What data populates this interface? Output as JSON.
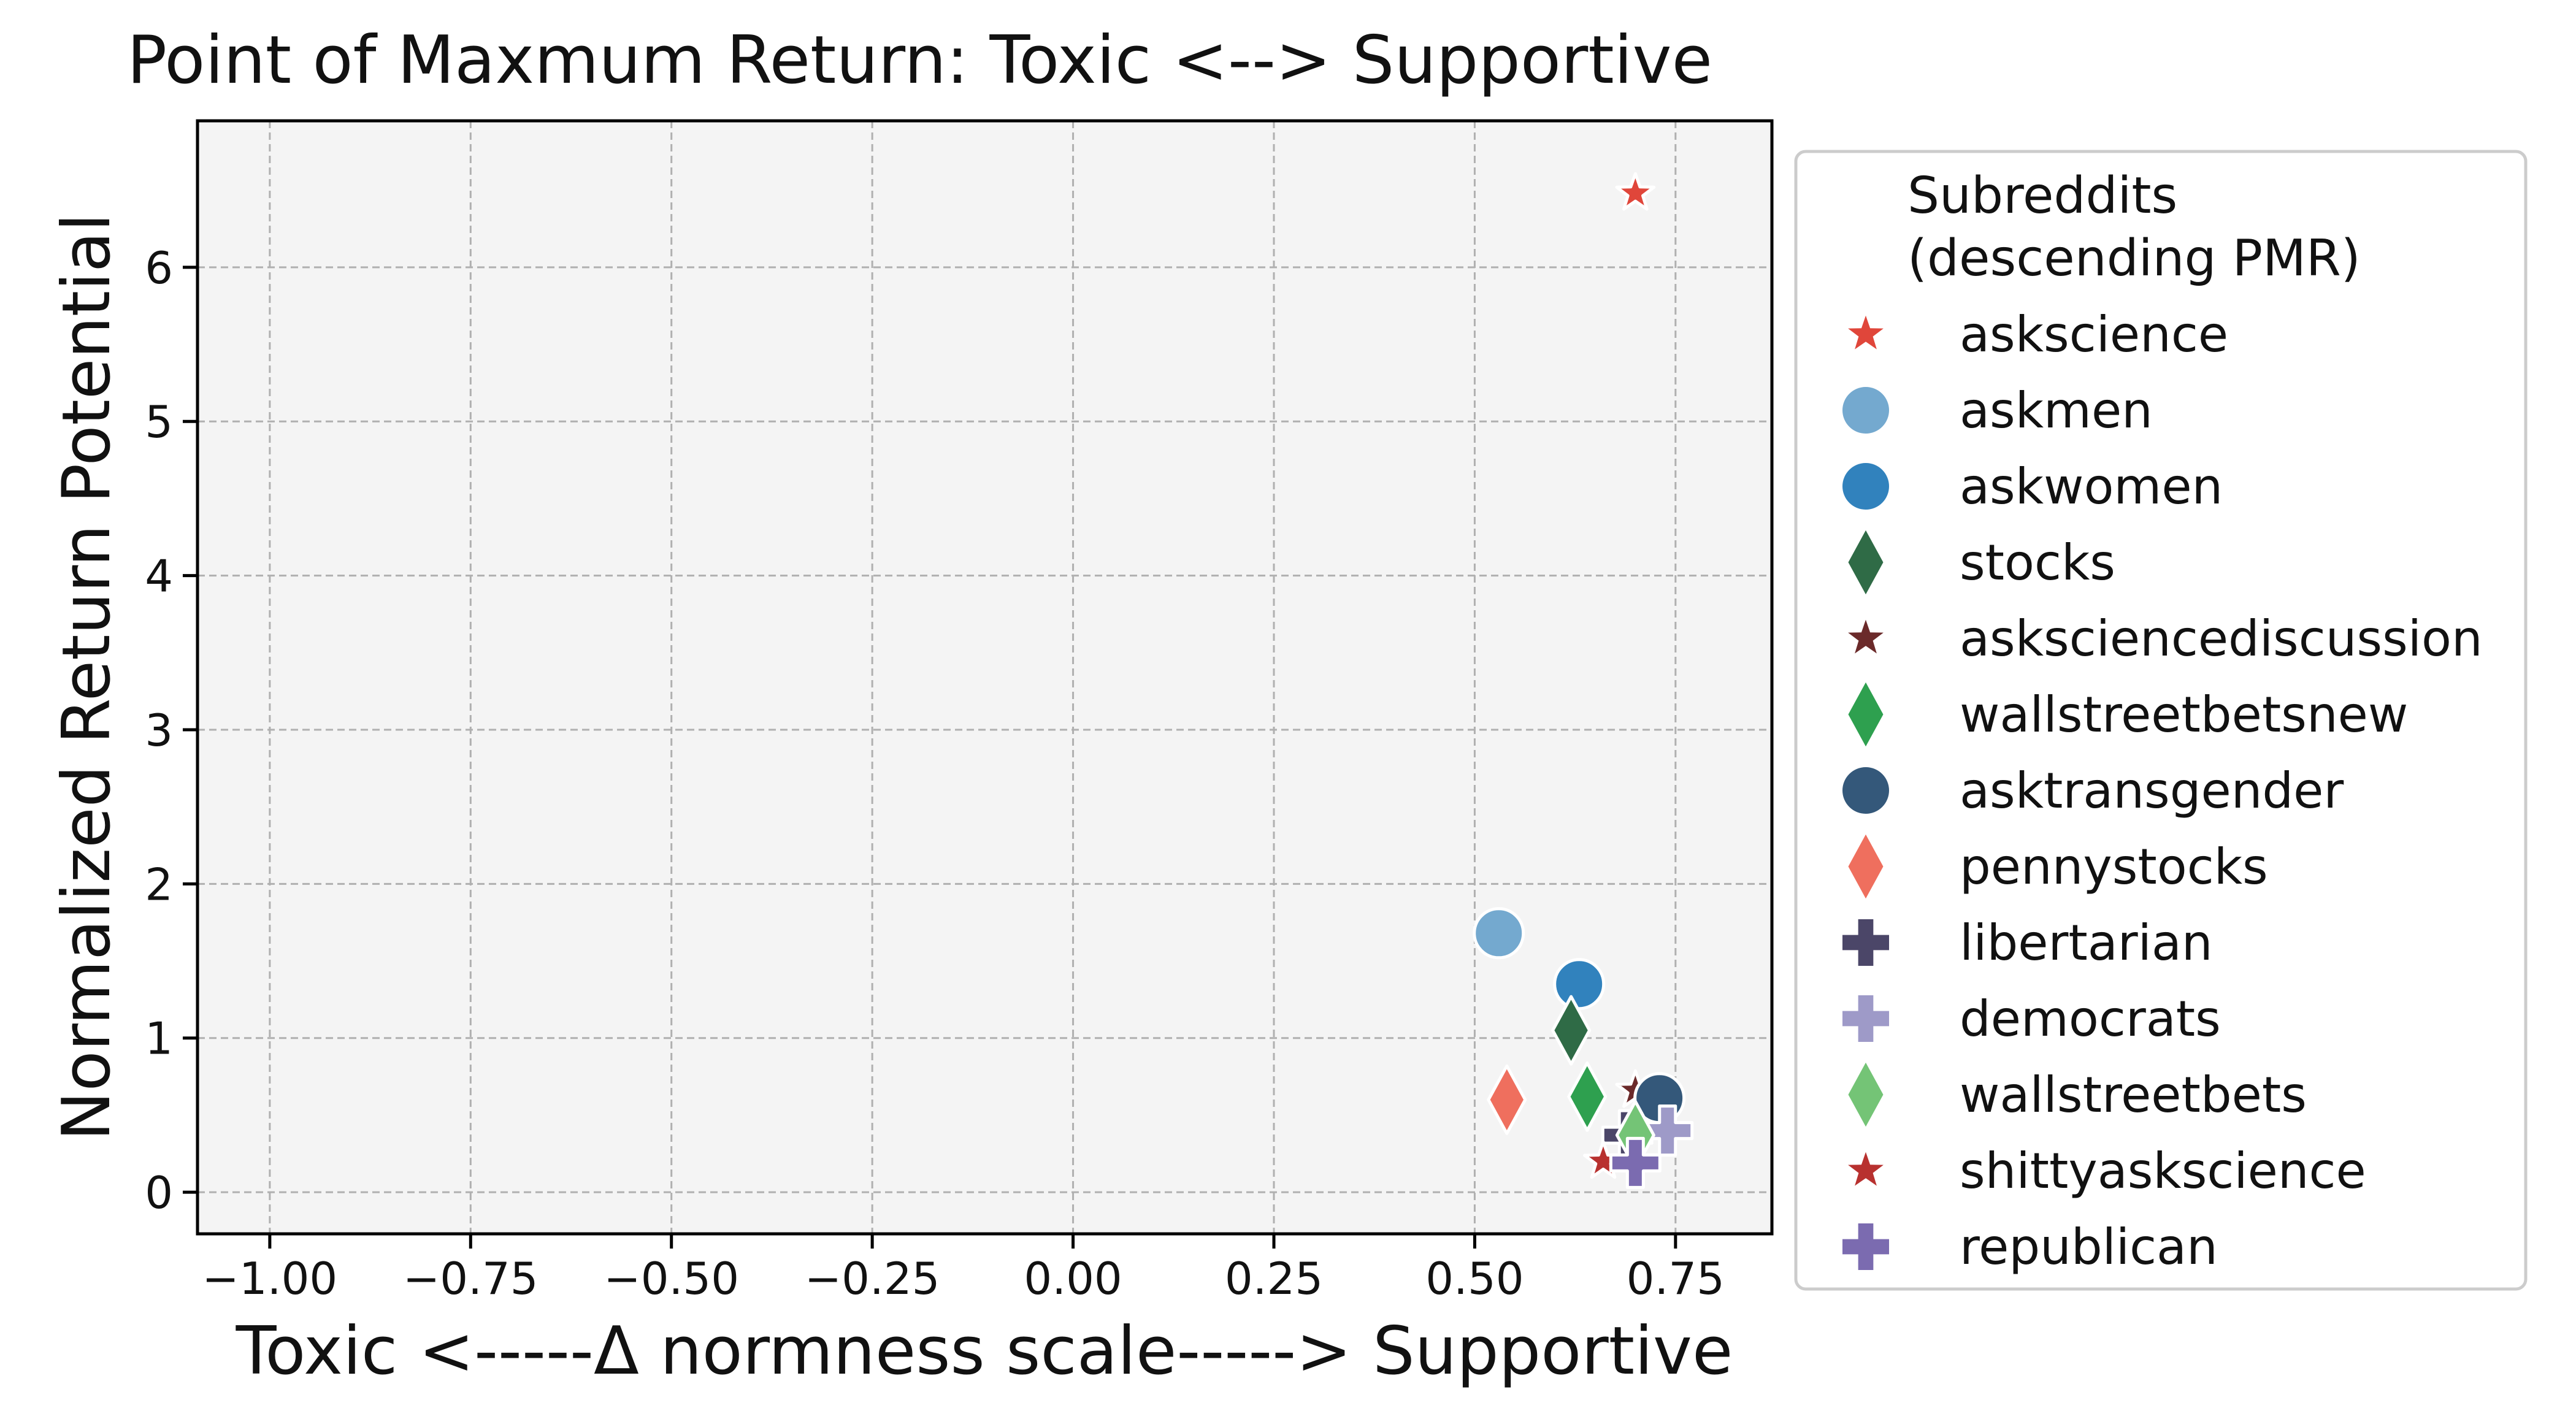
{
  "chart_data": {
    "type": "scatter",
    "title": "Point of Maxmum Return: Toxic <--> Supportive",
    "xlabel": "Toxic <-----Δ normness scale-----> Supportive",
    "ylabel": "Normalized Return Potential",
    "xlim": [
      -1.09,
      0.87
    ],
    "ylim": [
      -0.27,
      6.95
    ],
    "xticks": [
      -1.0,
      -0.75,
      -0.5,
      -0.25,
      0.0,
      0.25,
      0.5,
      0.75
    ],
    "xtick_labels": [
      "−1.00",
      "−0.75",
      "−0.50",
      "−0.25",
      "0.00",
      "0.25",
      "0.50",
      "0.75"
    ],
    "yticks": [
      0,
      1,
      2,
      3,
      4,
      5,
      6
    ],
    "ytick_labels": [
      "0",
      "1",
      "2",
      "3",
      "4",
      "5",
      "6"
    ],
    "grid": true,
    "legend_title": "Subreddits\n(descending PMR)",
    "legend_title_lines": [
      "Subreddits",
      "(descending PMR)"
    ],
    "legend_position": "outside-right",
    "series": [
      {
        "name": "askscience",
        "marker": "star",
        "color": "#e0463a",
        "x": 0.7,
        "y": 6.48
      },
      {
        "name": "askmen",
        "marker": "circle",
        "color": "#74a9cf",
        "x": 0.53,
        "y": 1.68
      },
      {
        "name": "askwomen",
        "marker": "circle",
        "color": "#3182bd",
        "x": 0.63,
        "y": 1.35
      },
      {
        "name": "stocks",
        "marker": "diamond",
        "color": "#2f6b46",
        "x": 0.62,
        "y": 1.05
      },
      {
        "name": "asksciencediscussion",
        "marker": "star",
        "color": "#6b2a2a",
        "x": 0.7,
        "y": 0.66
      },
      {
        "name": "wallstreetbetsnew",
        "marker": "diamond",
        "color": "#2ea04f",
        "x": 0.64,
        "y": 0.62
      },
      {
        "name": "asktransgender",
        "marker": "circle",
        "color": "#34587a",
        "x": 0.73,
        "y": 0.61
      },
      {
        "name": "pennystocks",
        "marker": "diamond",
        "color": "#ef6f5e",
        "x": 0.54,
        "y": 0.6
      },
      {
        "name": "libertarian",
        "marker": "plus",
        "color": "#4b4668",
        "x": 0.69,
        "y": 0.37
      },
      {
        "name": "democrats",
        "marker": "plus",
        "color": "#9e9ac8",
        "x": 0.74,
        "y": 0.4
      },
      {
        "name": "wallstreetbets",
        "marker": "diamond",
        "color": "#74c476",
        "x": 0.7,
        "y": 0.37
      },
      {
        "name": "shittyaskscience",
        "marker": "star",
        "color": "#b8312f",
        "x": 0.66,
        "y": 0.2
      },
      {
        "name": "republican",
        "marker": "plus",
        "color": "#7b6bb0",
        "x": 0.7,
        "y": 0.19
      }
    ]
  }
}
